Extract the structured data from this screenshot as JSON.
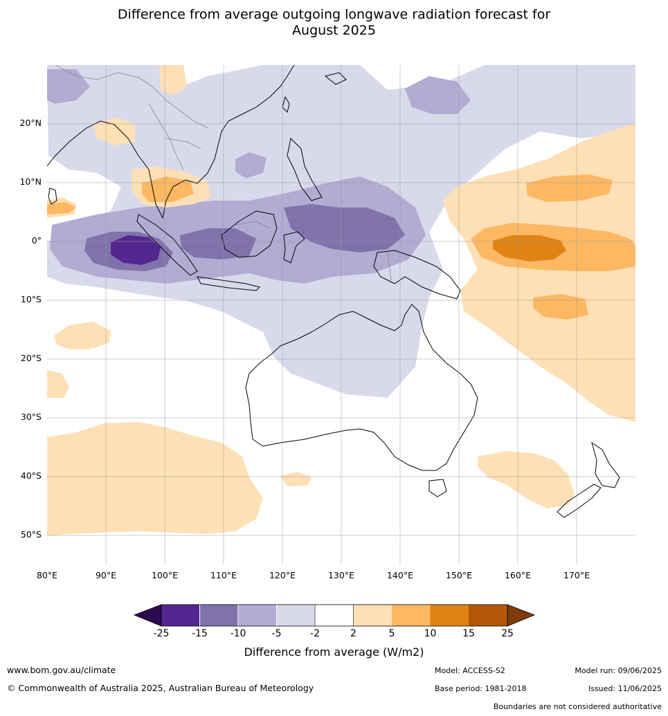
{
  "title": {
    "line1": "Difference from average outgoing longwave radiation forecast for",
    "line2": "August 2025"
  },
  "map": {
    "lat_labels": [
      "20°N",
      "10°N",
      "0°",
      "10°S",
      "20°S",
      "30°S",
      "40°S",
      "50°S"
    ],
    "lon_labels": [
      "80°E",
      "90°E",
      "100°E",
      "110°E",
      "120°E",
      "130°E",
      "140°E",
      "150°E",
      "160°E",
      "170°E"
    ],
    "extent": {
      "lon": [
        80,
        180
      ],
      "lat": [
        -55,
        30
      ]
    },
    "grid": true
  },
  "colorbar": {
    "title": "Difference from average (W/m2)",
    "ticks": [
      "-25",
      "-15",
      "-10",
      "-5",
      "-2",
      "2",
      "5",
      "10",
      "15",
      "25"
    ],
    "colors": {
      "below": "#2d0a4e",
      "lt_-15": "#54278f",
      "lt_-10": "#8073ac",
      "lt_-5": "#b2abd2",
      "lt_-2": "#d8daeb",
      "neutral": "#ffffff",
      "gt_2": "#fee0b6",
      "gt_5": "#fdb863",
      "gt_10": "#e08214",
      "gt_15": "#b35806",
      "above": "#7f3b08"
    }
  },
  "footer": {
    "website": "www.bom.gov.au/climate",
    "copyright": "© Commonwealth of Australia 2025, Australian Bureau of Meteorology",
    "model": "Model: ACCESS-S2",
    "base_period": "Base period: 1981-2018",
    "model_run": "Model run: 09/06/2025",
    "issued": "Issued: 11/06/2025",
    "disclaimer": "Boundaries are not considered authoritative"
  }
}
